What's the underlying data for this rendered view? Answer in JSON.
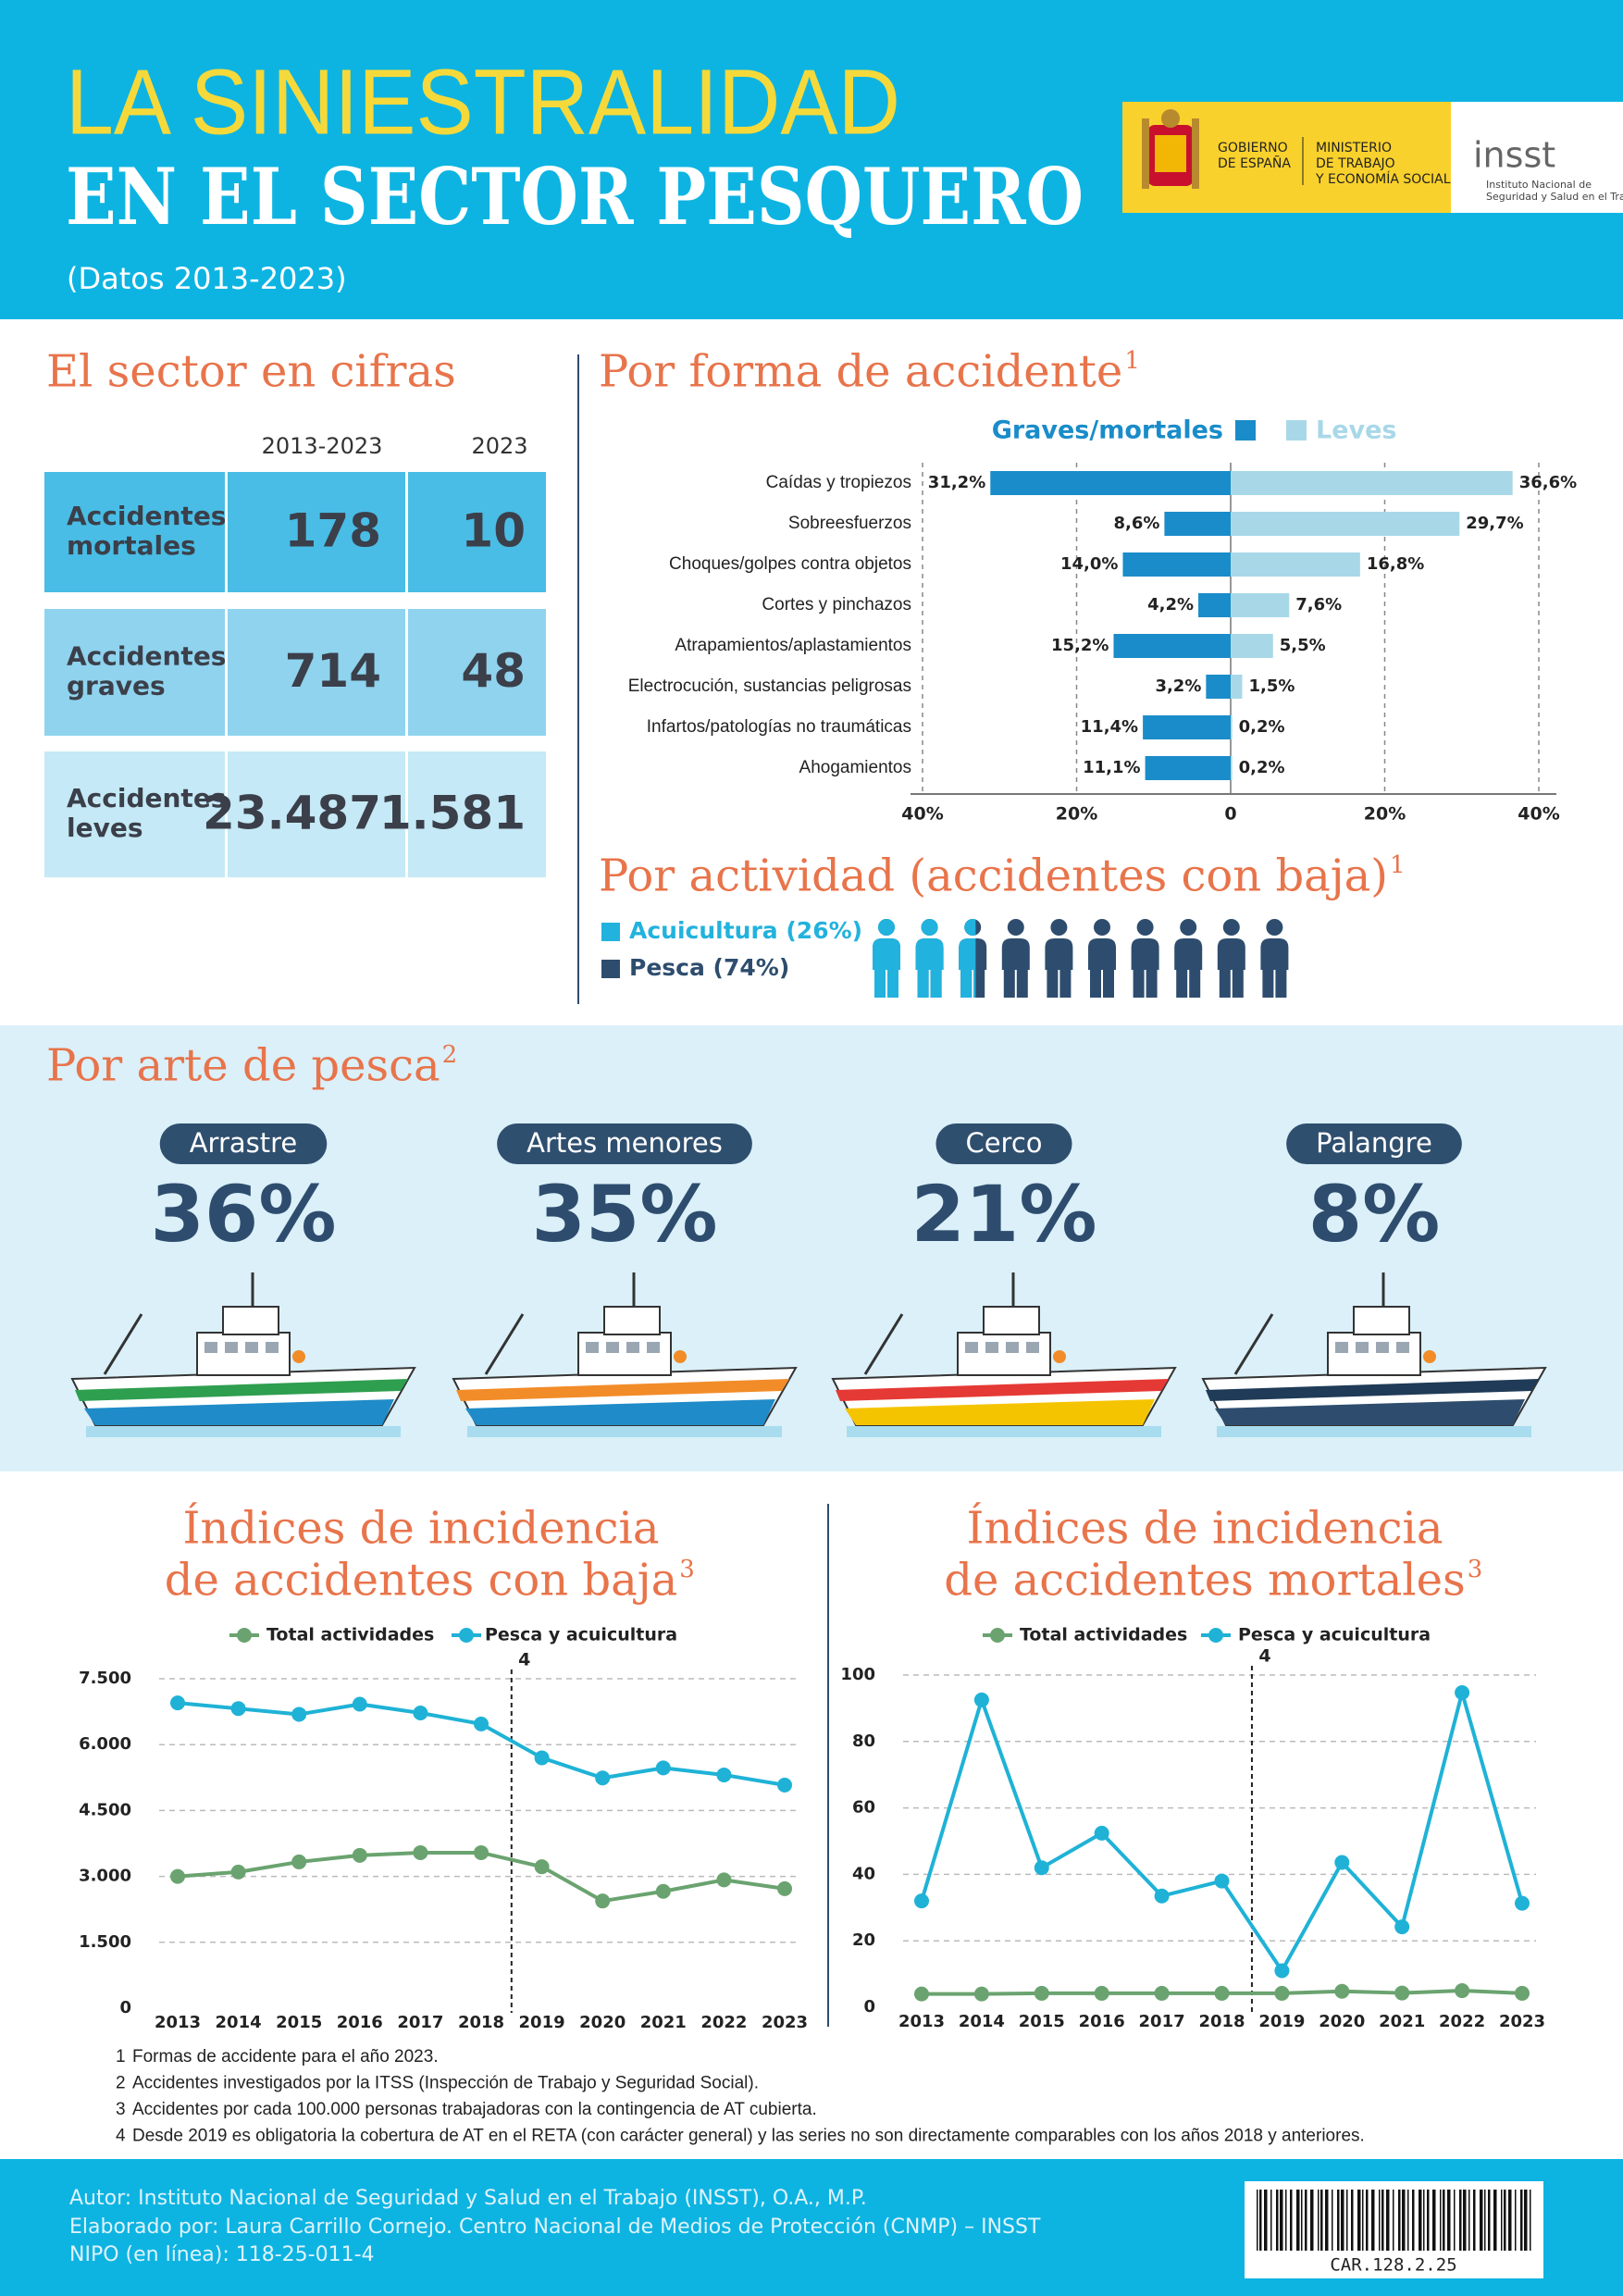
{
  "header": {
    "title_line1": "LA SINIESTRALIDAD",
    "title_line2": "EN EL SECTOR PESQUERO",
    "subtitle": "(Datos 2013-2023)",
    "logo_gobierno": [
      "GOBIERNO",
      "DE ESPAÑA"
    ],
    "logo_ministerio": [
      "MINISTERIO",
      "DE TRABAJO",
      "Y ECONOMÍA SOCIAL"
    ],
    "logo_insst": "insst",
    "logo_insst_name": [
      "Instituto Nacional de",
      "Seguridad y Salud en el Trabajo"
    ]
  },
  "cifras": {
    "title": "El sector en cifras",
    "columns": [
      "2013-2023",
      "2023"
    ],
    "rows": [
      {
        "label": [
          "Accidentes",
          "mortales"
        ],
        "values": [
          "178",
          "10"
        ]
      },
      {
        "label": [
          "Accidentes",
          "graves"
        ],
        "values": [
          "714",
          "48"
        ]
      },
      {
        "label": [
          "Accidentes",
          "leves"
        ],
        "values": [
          "23.487",
          "1.581"
        ]
      }
    ]
  },
  "chart_data": [
    {
      "type": "butterfly",
      "title": "Por forma de accidente",
      "title_note": "1",
      "categories": [
        "Caídas y tropiezos",
        "Sobreesfuerzos",
        "Choques/golpes contra objetos",
        "Cortes y pinchazos",
        "Atrapamientos/aplastamientos",
        "Electrocución, sustancias peligrosas",
        "Infartos/patologías no traumáticas",
        "Ahogamientos"
      ],
      "series": [
        {
          "name": "Graves/mortales",
          "color": "#1a8cc9",
          "values": [
            31.2,
            8.6,
            14.0,
            4.2,
            15.2,
            3.2,
            11.4,
            11.1
          ],
          "value_labels": [
            "31,2%",
            "8,6%",
            "14,0%",
            "4,2%",
            "15,2%",
            "3,2%",
            "11,4%",
            "11,1%"
          ]
        },
        {
          "name": "Leves",
          "color": "#a8d8e8",
          "values": [
            36.6,
            29.7,
            16.8,
            7.6,
            5.5,
            1.5,
            0.2,
            0.2
          ],
          "value_labels": [
            "36,6%",
            "29,7%",
            "16,8%",
            "7,6%",
            "5,5%",
            "1,5%",
            "0,2%",
            "0,2%"
          ]
        }
      ],
      "xlim": [
        0,
        40
      ],
      "xticks": [
        0,
        {
          "value": 20,
          "label": "20%"
        },
        {
          "value": 40,
          "label": "40%"
        }
      ],
      "grid": true
    },
    {
      "type": "pictogram",
      "title": "Por actividad (accidentes con baja)",
      "title_note": "1",
      "series": [
        {
          "name": "Acuicultura (26%)",
          "color": "#22b2de",
          "values": [
            26
          ]
        },
        {
          "name": "Pesca (74%)",
          "color": "#2e4d6e",
          "values": [
            74
          ]
        }
      ],
      "ylim": [
        0,
        100
      ]
    },
    {
      "type": "line",
      "title": [
        "Índices de incidencia",
        "de accidentes con baja"
      ],
      "title_note": "3",
      "x": [
        2013,
        2014,
        2015,
        2016,
        2017,
        2018,
        2019,
        2020,
        2021,
        2022,
        2023
      ],
      "xlim": [
        2013,
        2023
      ],
      "xticks": [
        2013,
        2014,
        2015,
        2016,
        2017,
        2018,
        2019,
        2020,
        2021,
        2022,
        2023
      ],
      "series": [
        {
          "name": "Total actividades",
          "color": "#6aa36f",
          "values": [
            3000,
            3100,
            3330,
            3480,
            3540,
            3540,
            3220,
            2440,
            2660,
            2920,
            2720
          ]
        },
        {
          "name": "Pesca y acuicultura",
          "color": "#1fb2d6",
          "values": [
            6950,
            6820,
            6690,
            6920,
            6720,
            6470,
            5700,
            5240,
            5470,
            5310,
            5080
          ]
        }
      ],
      "ylim": [
        0,
        7500
      ],
      "yticks": [
        0,
        {
          "value": 1500,
          "label": "1.500"
        },
        {
          "value": 3000,
          "label": "3.000"
        },
        {
          "value": 4500,
          "label": "4.500"
        },
        {
          "value": 6000,
          "label": "6.000"
        },
        {
          "value": 7500,
          "label": "7.500"
        }
      ],
      "grid": true,
      "annotations": [
        {
          "x": 2018.5,
          "text": "4"
        }
      ]
    },
    {
      "type": "line",
      "title": [
        "Índices de incidencia",
        "de accidentes mortales"
      ],
      "title_note": "3",
      "x": [
        2013,
        2014,
        2015,
        2016,
        2017,
        2018,
        2019,
        2020,
        2021,
        2022,
        2023
      ],
      "xlim": [
        2013,
        2023
      ],
      "xticks": [
        2013,
        2014,
        2015,
        2016,
        2017,
        2018,
        2019,
        2020,
        2021,
        2022,
        2023
      ],
      "series": [
        {
          "name": "Total actividades",
          "color": "#6aa36f",
          "values": [
            4.0,
            4.0,
            4.2,
            4.2,
            4.2,
            4.2,
            4.2,
            4.8,
            4.3,
            5.0,
            4.2
          ]
        },
        {
          "name": "Pesca y acuicultura",
          "color": "#1fb2d6",
          "values": [
            32,
            92.5,
            42,
            52.4,
            33.5,
            38,
            11,
            43.6,
            24.2,
            94.7,
            31.3
          ]
        }
      ],
      "ylim": [
        0,
        100
      ],
      "yticks": [
        0,
        20,
        40,
        60,
        80,
        100
      ],
      "grid": true,
      "annotations": [
        {
          "x": 2018.5,
          "text": "4"
        }
      ]
    }
  ],
  "arte_pesca": {
    "title": "Por arte de pesca",
    "title_note": "2",
    "items": [
      {
        "label": "Arrastre",
        "value": "36%"
      },
      {
        "label": "Artes menores",
        "value": "35%"
      },
      {
        "label": "Cerco",
        "value": "21%"
      },
      {
        "label": "Palangre",
        "value": "8%"
      }
    ]
  },
  "footnotes": [
    {
      "number": "1",
      "text": "Formas de accidente para el año 2023."
    },
    {
      "number": "2",
      "text": "Accidentes investigados por la ITSS (Inspección de Trabajo y Seguridad Social)."
    },
    {
      "number": "3",
      "text": "Accidentes por cada 100.000 personas trabajadoras con la contingencia de AT cubierta."
    },
    {
      "number": "4",
      "text": "Desde 2019 es obligatoria la cobertura de AT en el RETA (con carácter general) y las series no son directamente comparables con los años 2018 y anteriores."
    }
  ],
  "footer": {
    "lines": [
      "Autor: Instituto Nacional de Seguridad y Salud en el Trabajo (INSST), O.A., M.P.",
      "Elaborado por: Laura Carrillo Cornejo. Centro Nacional de Medios de Protección (CNMP) – INSST",
      "NIPO (en línea): 118-25-011-4"
    ],
    "barcode": "CAR.128.2.25"
  }
}
